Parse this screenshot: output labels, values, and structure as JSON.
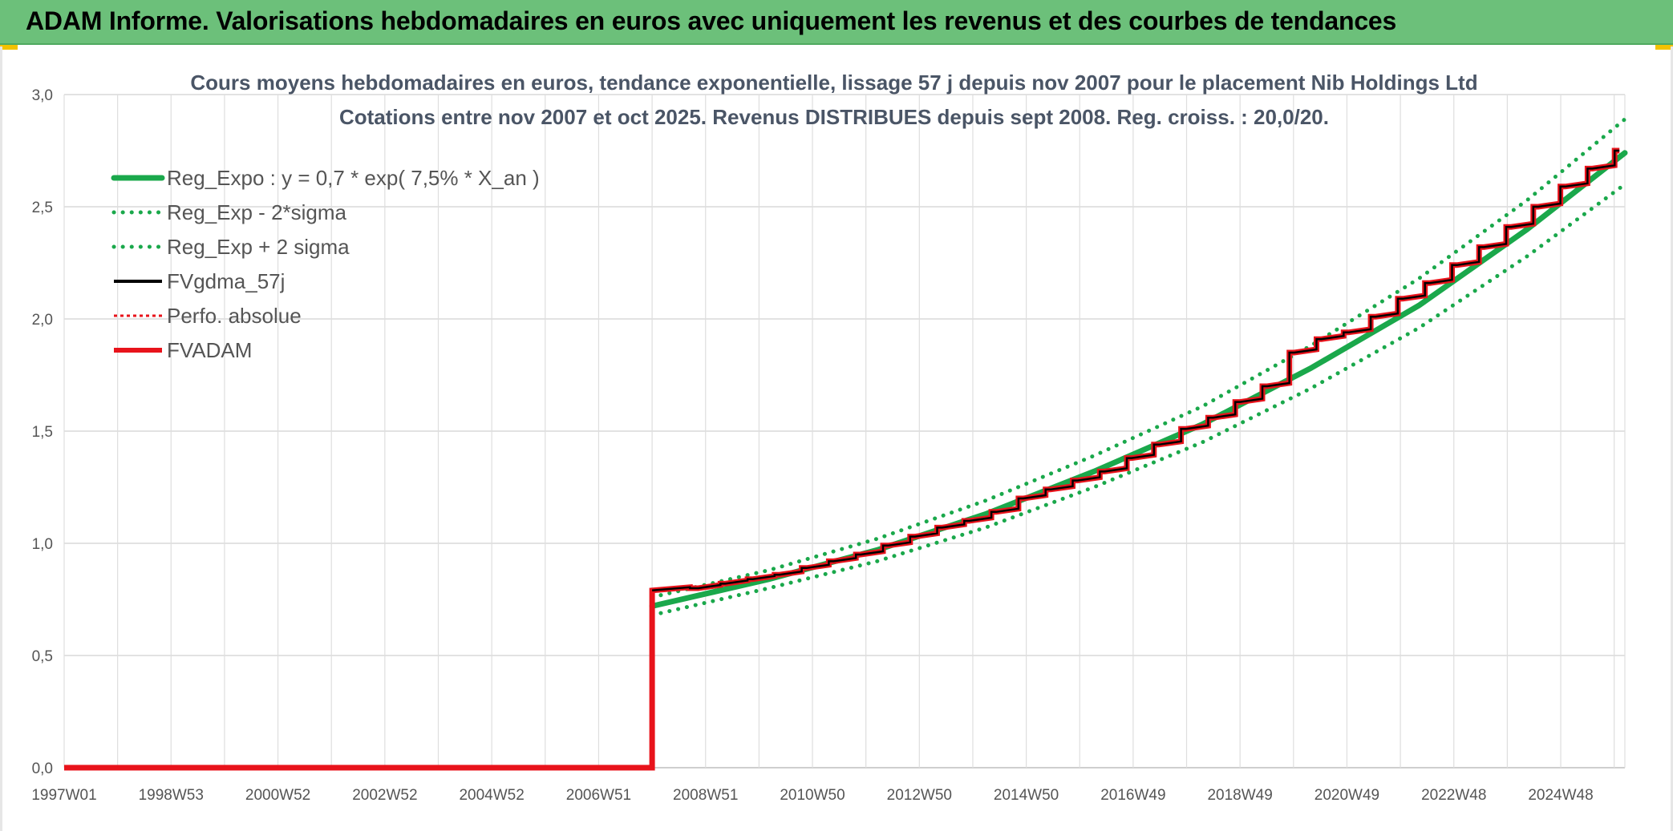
{
  "header": {
    "title": "ADAM Informe. Valorisations hebdomadaires en euros avec uniquement les revenus et des courbes de tendances"
  },
  "colors": {
    "header_bg": "#6cc07a",
    "trend_green": "#1aa84b",
    "fv_black": "#000000",
    "fvadam_red": "#e8131b",
    "accent_yellow": "#f2c200"
  },
  "chart_data": {
    "type": "line",
    "title_lines": [
      "Cours moyens hebdomadaires en euros, tendance exponentielle, lissage 57 j depuis nov 2007 pour le placement Nib Holdings Ltd",
      "Cotations entre nov 2007 et oct 2025. Revenus DISTRIBUES depuis sept 2008. Reg. croiss. : 20,0/20."
    ],
    "x_tick_labels": [
      "1997W01",
      "1998W53",
      "2000W52",
      "2002W52",
      "2004W52",
      "2006W51",
      "2008W51",
      "2010W50",
      "2012W50",
      "2014W50",
      "2016W49",
      "2018W49",
      "2020W49",
      "2022W48",
      "2024W48"
    ],
    "x_range_years": [
      1997.0,
      2025.8
    ],
    "y_ticks": [
      "0,0",
      "0,5",
      "1,0",
      "1,5",
      "2,0",
      "2,5",
      "3,0"
    ],
    "ylim": [
      0,
      3.0
    ],
    "grid": true,
    "legend_position": "top-left",
    "legend": [
      {
        "label": "Reg_Expo : y = 0,7 * exp( 7,5% *  X_an )",
        "style": "solid-thick",
        "color": "#1aa84b"
      },
      {
        "label": "Reg_Exp - 2*sigma",
        "style": "dotted",
        "color": "#1aa84b"
      },
      {
        "label": "Reg_Exp + 2 sigma",
        "style": "dotted",
        "color": "#1aa84b"
      },
      {
        "label": "FVgdma_57j",
        "style": "solid",
        "color": "#000000"
      },
      {
        "label": "Perfo. absolue",
        "style": "dotted",
        "color": "#e8131b"
      },
      {
        "label": "FVADAM",
        "style": "solid-thick",
        "color": "#e8131b"
      }
    ],
    "series": [
      {
        "name": "Reg_Expo : y = 0,7 * exp( 7,5% *  X_an )",
        "x": [
          2007.85,
          2010,
          2012,
          2014,
          2016,
          2018,
          2020,
          2022,
          2024,
          2025.8
        ],
        "values": [
          0.72,
          0.84,
          0.97,
          1.13,
          1.32,
          1.53,
          1.78,
          2.06,
          2.4,
          2.74
        ]
      },
      {
        "name": "Reg_Exp - 2*sigma",
        "x": [
          2007.85,
          2010,
          2012,
          2014,
          2016,
          2018,
          2020,
          2022,
          2024,
          2025.8
        ],
        "values": [
          0.68,
          0.8,
          0.92,
          1.07,
          1.25,
          1.45,
          1.69,
          1.96,
          2.28,
          2.6
        ]
      },
      {
        "name": "Reg_Exp + 2 sigma",
        "x": [
          2007.85,
          2010,
          2012,
          2014,
          2016,
          2018,
          2020,
          2022,
          2024,
          2025.8
        ],
        "values": [
          0.76,
          0.88,
          1.02,
          1.19,
          1.39,
          1.61,
          1.88,
          2.18,
          2.53,
          2.89
        ]
      },
      {
        "name": "FVADAM",
        "x": [
          1997.0,
          2007.85,
          2007.85,
          2008.7,
          2009.2,
          2009.7,
          2010.2,
          2010.7,
          2011.2,
          2011.7,
          2012.2,
          2012.7,
          2013.2,
          2013.7,
          2014.2,
          2014.7,
          2015.2,
          2015.7,
          2016.2,
          2016.7,
          2017.2,
          2017.7,
          2018.2,
          2018.7,
          2019.2,
          2019.7,
          2020.2,
          2020.7,
          2021.2,
          2021.7,
          2022.2,
          2022.7,
          2023.2,
          2023.7,
          2024.2,
          2024.7,
          2025.2,
          2025.7
        ],
        "values": [
          0.0,
          0.0,
          0.79,
          0.8,
          0.82,
          0.84,
          0.86,
          0.89,
          0.92,
          0.95,
          0.99,
          1.03,
          1.07,
          1.1,
          1.14,
          1.2,
          1.24,
          1.28,
          1.32,
          1.38,
          1.44,
          1.51,
          1.56,
          1.63,
          1.7,
          1.85,
          1.91,
          1.94,
          2.01,
          2.09,
          2.16,
          2.24,
          2.32,
          2.41,
          2.5,
          2.59,
          2.67,
          2.75
        ]
      },
      {
        "name": "FVgdma_57j",
        "x": [
          2007.85,
          2008.7,
          2009.2,
          2009.7,
          2010.2,
          2010.7,
          2011.2,
          2011.7,
          2012.2,
          2012.7,
          2013.2,
          2013.7,
          2014.2,
          2014.7,
          2015.2,
          2015.7,
          2016.2,
          2016.7,
          2017.2,
          2017.7,
          2018.2,
          2018.7,
          2019.2,
          2019.7,
          2020.2,
          2020.7,
          2021.2,
          2021.7,
          2022.2,
          2022.7,
          2023.2,
          2023.7,
          2024.2,
          2024.7,
          2025.2,
          2025.7
        ],
        "values": [
          0.79,
          0.8,
          0.82,
          0.84,
          0.86,
          0.89,
          0.92,
          0.95,
          0.99,
          1.03,
          1.07,
          1.1,
          1.14,
          1.2,
          1.24,
          1.28,
          1.32,
          1.38,
          1.44,
          1.51,
          1.56,
          1.63,
          1.7,
          1.85,
          1.91,
          1.94,
          2.01,
          2.09,
          2.16,
          2.24,
          2.32,
          2.41,
          2.5,
          2.59,
          2.67,
          2.75
        ]
      }
    ]
  }
}
